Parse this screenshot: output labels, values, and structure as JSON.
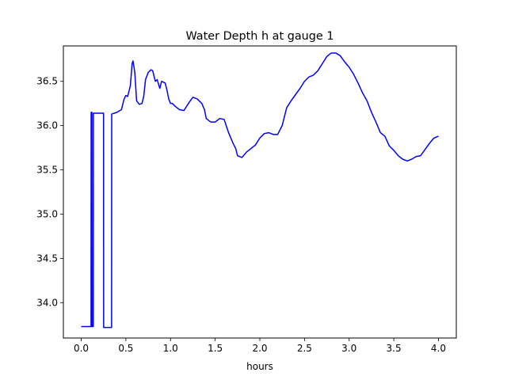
{
  "chart_data": {
    "type": "line",
    "title": "Water Depth h at gauge 1",
    "xlabel": "hours",
    "ylabel": "",
    "xlim": [
      -0.2,
      4.2
    ],
    "ylim": [
      33.6,
      36.9
    ],
    "xticks": [
      0.0,
      0.5,
      1.0,
      1.5,
      2.0,
      2.5,
      3.0,
      3.5,
      4.0
    ],
    "xtick_labels": [
      "0.0",
      "0.5",
      "1.0",
      "1.5",
      "2.0",
      "2.5",
      "3.0",
      "3.5",
      "4.0"
    ],
    "yticks": [
      34.0,
      34.5,
      35.0,
      35.5,
      36.0,
      36.5
    ],
    "ytick_labels": [
      "34.0",
      "34.5",
      "35.0",
      "35.5",
      "36.0",
      "36.5"
    ],
    "grid": false,
    "series": [
      {
        "name": "",
        "color": "#0000ff",
        "x": [
          0.0,
          0.11,
          0.111,
          0.12,
          0.121,
          0.135,
          0.136,
          0.15,
          0.151,
          0.25,
          0.251,
          0.34,
          0.341,
          0.4,
          0.45,
          0.48,
          0.5,
          0.52,
          0.55,
          0.57,
          0.58,
          0.6,
          0.62,
          0.65,
          0.68,
          0.7,
          0.72,
          0.75,
          0.78,
          0.8,
          0.83,
          0.85,
          0.88,
          0.9,
          0.92,
          0.94,
          0.96,
          0.98,
          1.0,
          1.02,
          1.05,
          1.1,
          1.15,
          1.2,
          1.25,
          1.3,
          1.35,
          1.38,
          1.4,
          1.45,
          1.5,
          1.55,
          1.6,
          1.65,
          1.7,
          1.73,
          1.75,
          1.8,
          1.85,
          1.9,
          1.95,
          2.0,
          2.05,
          2.1,
          2.15,
          2.2,
          2.25,
          2.3,
          2.35,
          2.4,
          2.45,
          2.5,
          2.55,
          2.6,
          2.65,
          2.7,
          2.75,
          2.8,
          2.85,
          2.9,
          2.95,
          3.0,
          3.05,
          3.1,
          3.15,
          3.2,
          3.25,
          3.3,
          3.35,
          3.4,
          3.45,
          3.5,
          3.55,
          3.6,
          3.65,
          3.7,
          3.75,
          3.8,
          3.85,
          3.9,
          3.95,
          4.0
        ],
        "y": [
          33.73,
          33.73,
          36.15,
          36.15,
          33.73,
          33.73,
          36.14,
          36.14,
          36.14,
          36.14,
          33.72,
          33.72,
          36.13,
          36.15,
          36.18,
          36.3,
          36.34,
          36.33,
          36.45,
          36.7,
          36.73,
          36.6,
          36.28,
          36.24,
          36.25,
          36.33,
          36.52,
          36.6,
          36.63,
          36.62,
          36.5,
          36.52,
          36.42,
          36.5,
          36.49,
          36.48,
          36.4,
          36.3,
          36.25,
          36.25,
          36.22,
          36.18,
          36.17,
          36.25,
          36.32,
          36.3,
          36.25,
          36.18,
          36.08,
          36.04,
          36.04,
          36.08,
          36.07,
          35.92,
          35.8,
          35.74,
          35.66,
          35.64,
          35.7,
          35.74,
          35.78,
          35.86,
          35.91,
          35.92,
          35.9,
          35.9,
          36.0,
          36.2,
          36.28,
          36.35,
          36.42,
          36.5,
          36.55,
          36.57,
          36.62,
          36.7,
          36.78,
          36.82,
          36.82,
          36.79,
          36.72,
          36.66,
          36.58,
          36.48,
          36.37,
          36.28,
          36.15,
          36.04,
          35.92,
          35.88,
          35.77,
          35.72,
          35.66,
          35.62,
          35.6,
          35.62,
          35.65,
          35.66,
          35.73,
          35.8,
          35.86,
          35.88
        ]
      }
    ]
  }
}
